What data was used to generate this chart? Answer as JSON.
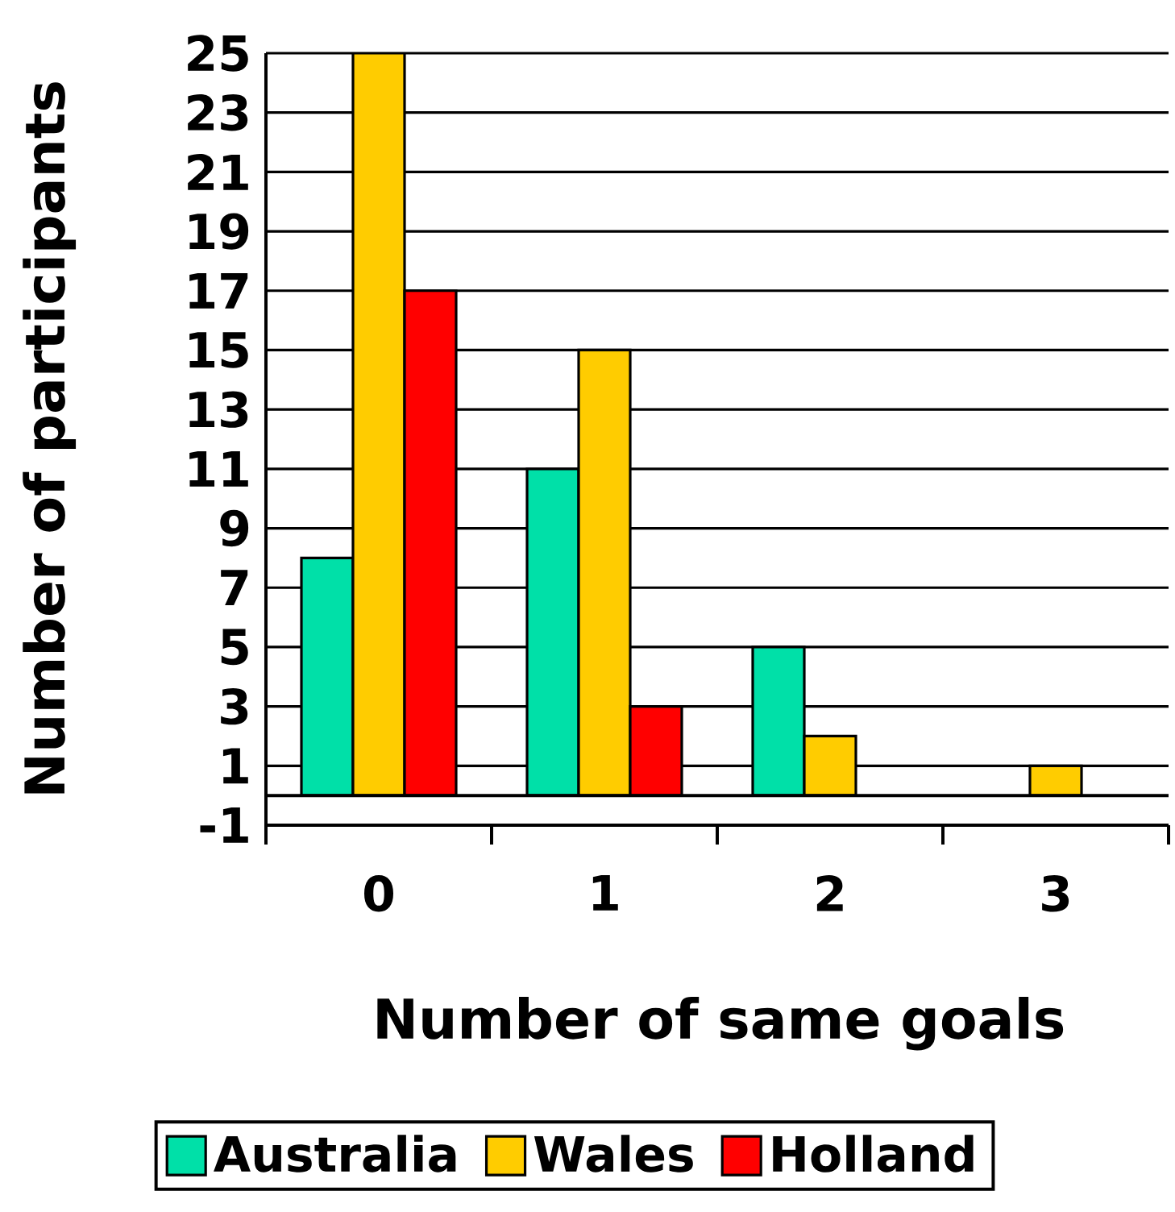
{
  "chart_data": {
    "type": "bar",
    "xlabel": "Number of same goals",
    "ylabel": "Number of participants",
    "categories": [
      "0",
      "1",
      "2",
      "3"
    ],
    "series": [
      {
        "name": "Australia",
        "color": "#00e0a8",
        "values": [
          8,
          11,
          5,
          null
        ]
      },
      {
        "name": "Wales",
        "color": "#ffcc00",
        "values": [
          25,
          15,
          2,
          1
        ]
      },
      {
        "name": "Holland",
        "color": "#ff0000",
        "values": [
          17,
          3,
          null,
          null
        ]
      }
    ],
    "ylim": [
      -1,
      25
    ],
    "yticks": [
      -1,
      1,
      3,
      5,
      7,
      9,
      11,
      13,
      15,
      17,
      19,
      21,
      23,
      25
    ],
    "grid": "y",
    "legend": "bottom"
  }
}
